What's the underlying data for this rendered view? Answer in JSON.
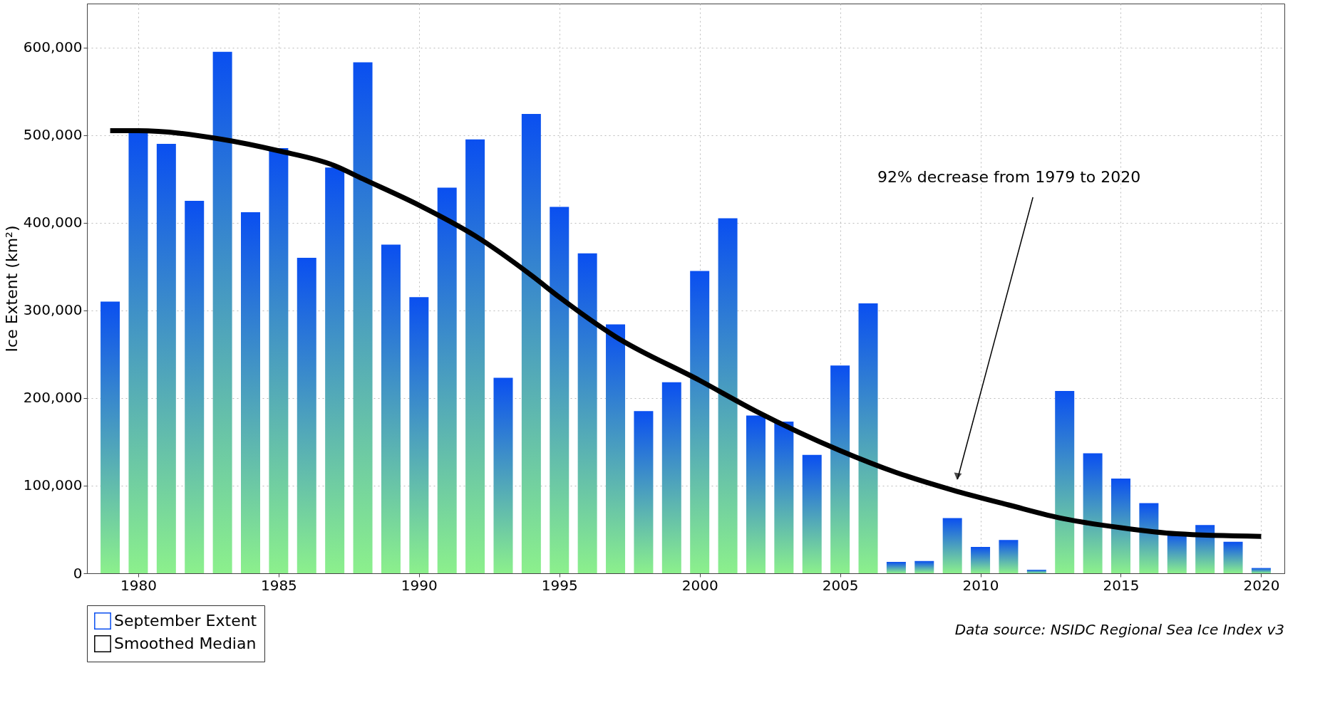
{
  "chart_data": {
    "type": "bar",
    "x": [
      1979,
      1980,
      1981,
      1982,
      1983,
      1984,
      1985,
      1986,
      1987,
      1988,
      1989,
      1990,
      1991,
      1992,
      1993,
      1994,
      1995,
      1996,
      1997,
      1998,
      1999,
      2000,
      2001,
      2002,
      2003,
      2004,
      2005,
      2006,
      2007,
      2008,
      2009,
      2010,
      2011,
      2012,
      2013,
      2014,
      2015,
      2016,
      2017,
      2018,
      2019,
      2020
    ],
    "series": [
      {
        "name": "September Extent",
        "color": "#0a4ff0",
        "values": [
          310000,
          505000,
          490000,
          425000,
          595000,
          412000,
          485000,
          360000,
          463000,
          583000,
          375000,
          315000,
          440000,
          495000,
          223000,
          524000,
          418000,
          365000,
          284000,
          185000,
          218000,
          345000,
          405000,
          180000,
          173000,
          135000,
          237000,
          308000,
          13000,
          14000,
          63000,
          30000,
          38000,
          4000,
          208000,
          137000,
          108000,
          80000,
          47000,
          55000,
          36000,
          6000
        ]
      },
      {
        "name": "Smoothed Median",
        "type": "line",
        "color": "#000000",
        "x": [
          1979,
          1980,
          1983,
          1985,
          1987,
          1988,
          1990,
          1992,
          1994,
          1995,
          1997,
          2000,
          2002,
          2005,
          2007,
          2009,
          2011,
          2013,
          2015,
          2017,
          2020
        ],
        "values": [
          505000,
          505000,
          495000,
          482000,
          465000,
          450000,
          420000,
          385000,
          340000,
          315000,
          270000,
          220000,
          185000,
          140000,
          115000,
          95000,
          78000,
          62000,
          52000,
          45000,
          42000
        ]
      }
    ],
    "ylabel": "Ice Extent (km²)",
    "xlim": [
      1978.3,
      2020.7
    ],
    "xticks": [
      1980,
      1985,
      1990,
      1995,
      2000,
      2005,
      2010,
      2015,
      2020
    ],
    "ylim": [
      0,
      650000
    ],
    "yticks": [
      0,
      {
        "value": 100000,
        "label": "100,000"
      },
      {
        "value": 200000,
        "label": "200,000"
      },
      {
        "value": 300000,
        "label": "300,000"
      },
      {
        "value": 400000,
        "label": "400,000"
      },
      {
        "value": 500000,
        "label": "500,000"
      },
      {
        "value": 600000,
        "label": "600,000"
      }
    ],
    "grid": true,
    "legend": "bottom",
    "annotations": [
      "92% decrease from 1979 to 2020",
      "Data source: NSIDC Regional Sea Ice Index v3"
    ]
  }
}
